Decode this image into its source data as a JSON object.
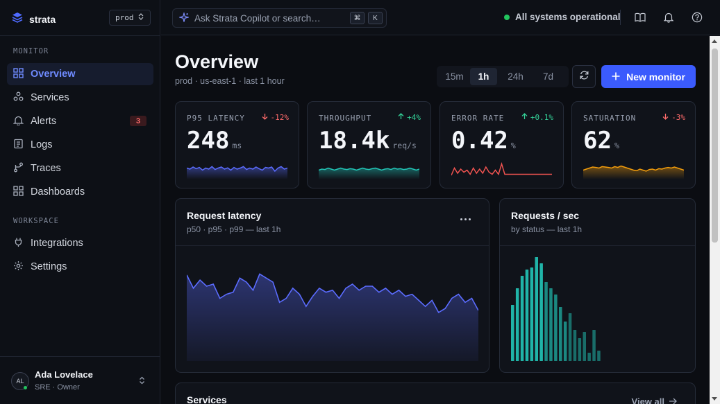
{
  "brand": {
    "name": "strata"
  },
  "env": {
    "value": "prod"
  },
  "sidebar": {
    "sections": [
      {
        "title": "MONITOR",
        "items": [
          {
            "label": "Overview",
            "icon": "grid-icon",
            "active": true
          },
          {
            "label": "Services",
            "icon": "services-icon"
          },
          {
            "label": "Alerts",
            "icon": "bell-icon",
            "badge": "3"
          },
          {
            "label": "Logs",
            "icon": "logs-icon"
          },
          {
            "label": "Traces",
            "icon": "traces-icon"
          },
          {
            "label": "Dashboards",
            "icon": "dashboard-icon"
          }
        ]
      },
      {
        "title": "WORKSPACE",
        "items": [
          {
            "label": "Integrations",
            "icon": "plug-icon"
          },
          {
            "label": "Settings",
            "icon": "gear-icon"
          }
        ]
      }
    ]
  },
  "user": {
    "initials": "AL",
    "name": "Ada Lovelace",
    "role": "SRE · Owner"
  },
  "topbar": {
    "search_placeholder": "Ask Strata Copilot or search…",
    "kbd_cmd": "⌘",
    "kbd_k": "K",
    "status": "All systems operational"
  },
  "main": {
    "title": "Overview",
    "subtitle": "prod · us-east-1 · last 1 hour",
    "ranges": [
      "15m",
      "1h",
      "24h",
      "7d"
    ],
    "selected_range": "1h",
    "new_button": "New monitor"
  },
  "kpis": [
    {
      "label": "P95 LATENCY",
      "delta": "-12%",
      "direction": "down",
      "value": "248",
      "unit": "ms",
      "color": "#5b6cff",
      "spark": [
        0.55,
        0.5,
        0.6,
        0.52,
        0.58,
        0.45,
        0.55,
        0.5,
        0.62,
        0.48,
        0.55,
        0.6,
        0.5,
        0.56,
        0.45,
        0.58,
        0.5,
        0.55,
        0.62,
        0.48,
        0.55,
        0.5,
        0.6,
        0.52,
        0.45,
        0.58,
        0.55,
        0.6,
        0.4,
        0.55,
        0.62,
        0.5,
        0.55
      ]
    },
    {
      "label": "THROUGHPUT",
      "delta": "+4%",
      "direction": "up",
      "value": "18.4k",
      "unit": "req/s",
      "color": "#22c7b8",
      "spark": [
        0.45,
        0.5,
        0.48,
        0.55,
        0.5,
        0.45,
        0.5,
        0.55,
        0.5,
        0.48,
        0.52,
        0.5,
        0.45,
        0.5,
        0.55,
        0.5,
        0.48,
        0.52,
        0.55,
        0.5,
        0.45,
        0.5,
        0.52,
        0.48,
        0.55,
        0.5,
        0.52,
        0.48,
        0.5,
        0.55,
        0.5,
        0.45,
        0.5
      ]
    },
    {
      "label": "ERROR RATE",
      "delta": "+0.1%",
      "direction": "up",
      "value": "0.42",
      "unit": "%",
      "color": "#ef5350",
      "spark": [
        0.2,
        0.55,
        0.3,
        0.5,
        0.35,
        0.45,
        0.25,
        0.55,
        0.3,
        0.5,
        0.3,
        0.6,
        0.35,
        0.25,
        0.45,
        0.25,
        0.75,
        0.25,
        0.25,
        0.25,
        0.25,
        0.25,
        0.25,
        0.25,
        0.25,
        0.25,
        0.25,
        0.25,
        0.25,
        0.25,
        0.25,
        0.25,
        0.25
      ]
    },
    {
      "label": "SATURATION",
      "delta": "-3%",
      "direction": "down",
      "value": "62",
      "unit": "%",
      "color": "#f59e0b",
      "spark": [
        0.45,
        0.5,
        0.55,
        0.6,
        0.58,
        0.55,
        0.62,
        0.6,
        0.58,
        0.55,
        0.62,
        0.58,
        0.65,
        0.6,
        0.55,
        0.5,
        0.45,
        0.42,
        0.5,
        0.45,
        0.4,
        0.48,
        0.5,
        0.45,
        0.52,
        0.5,
        0.55,
        0.58,
        0.55,
        0.6,
        0.55,
        0.5,
        0.45
      ]
    }
  ],
  "latency_panel": {
    "title": "Request latency",
    "subtitle": "p50 · p95 · p99 — last 1h"
  },
  "rps_panel": {
    "title": "Requests / sec",
    "subtitle": "by status — last 1h"
  },
  "services_panel": {
    "title": "Services",
    "view_all": "View all"
  },
  "chart_data": [
    {
      "type": "area",
      "title": "Request latency",
      "subtitle": "p50 · p95 · p99 — last 1h",
      "color": "#5b6cff",
      "values": [
        0.85,
        0.72,
        0.8,
        0.74,
        0.76,
        0.62,
        0.66,
        0.68,
        0.82,
        0.78,
        0.7,
        0.86,
        0.82,
        0.78,
        0.58,
        0.62,
        0.72,
        0.66,
        0.54,
        0.64,
        0.72,
        0.68,
        0.7,
        0.62,
        0.72,
        0.76,
        0.7,
        0.74,
        0.74,
        0.68,
        0.72,
        0.66,
        0.7,
        0.64,
        0.66,
        0.6,
        0.54,
        0.6,
        0.48,
        0.52,
        0.62,
        0.66,
        0.58,
        0.62,
        0.5
      ]
    },
    {
      "type": "bar",
      "title": "Requests / sec",
      "subtitle": "by status — last 1h",
      "color": "#22c7b8",
      "values": [
        0.54,
        0.7,
        0.82,
        0.88,
        0.9,
        1.0,
        0.94,
        0.76,
        0.7,
        0.64,
        0.52,
        0.38,
        0.46,
        0.3,
        0.22,
        0.28,
        0.08,
        0.3,
        0.1
      ]
    }
  ]
}
